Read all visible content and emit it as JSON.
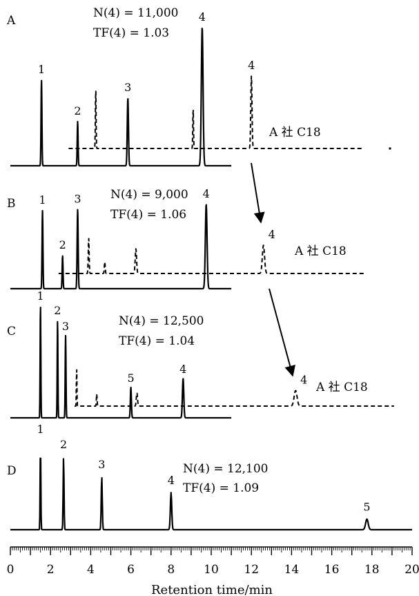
{
  "chart_data": {
    "type": "line",
    "xlabel": "Retention time/min",
    "xlim": [
      0,
      20
    ],
    "x_ticks": [
      "0",
      "2",
      "4",
      "6",
      "8",
      "10",
      "12",
      "14",
      "16",
      "18",
      "20"
    ],
    "arrow_label": "A 社 C18",
    "panels": [
      {
        "id": "A",
        "label": "A",
        "n_text": "N(4) = 11,000",
        "tf_text": "TF(4) = 1.03",
        "solid": {
          "x_range": [
            0,
            11
          ],
          "peaks": [
            {
              "label": "1",
              "rt": 1.55,
              "height": 0.62,
              "width": 0.05
            },
            {
              "label": "2",
              "rt": 3.35,
              "height": 0.32,
              "width": 0.05
            },
            {
              "label": "3",
              "rt": 5.85,
              "height": 0.49,
              "width": 0.07
            },
            {
              "label": "4",
              "rt": 9.55,
              "height": 1.0,
              "width": 0.1
            }
          ]
        },
        "dashed": {
          "x_range": [
            2.9,
            17.6
          ],
          "peaks": [
            {
              "rt": 4.25,
              "height": 0.5,
              "width": 0.04
            },
            {
              "rt": 9.1,
              "height": 0.34,
              "width": 0.04
            },
            {
              "label": "4",
              "rt": 12.0,
              "height": 0.6,
              "width": 0.07
            }
          ],
          "dot_x": 18.9
        }
      },
      {
        "id": "B",
        "label": "B",
        "n_text": "N(4) = 9,000",
        "tf_text": "TF(4) = 1.06",
        "solid": {
          "x_range": [
            0,
            11
          ],
          "peaks": [
            {
              "label": "1",
              "rt": 1.6,
              "height": 0.78,
              "width": 0.05
            },
            {
              "label": "2",
              "rt": 2.6,
              "height": 0.33,
              "width": 0.05
            },
            {
              "label": "3",
              "rt": 3.35,
              "height": 0.79,
              "width": 0.06
            },
            {
              "label": "4",
              "rt": 9.75,
              "height": 0.84,
              "width": 0.1
            }
          ]
        },
        "dashed": {
          "x_range": [
            2.4,
            17.6
          ],
          "peaks": [
            {
              "rt": 3.9,
              "height": 0.3,
              "width": 0.05
            },
            {
              "rt": 4.7,
              "height": 0.1,
              "width": 0.05
            },
            {
              "rt": 6.25,
              "height": 0.21,
              "width": 0.08
            },
            {
              "label": "4",
              "rt": 12.6,
              "height": 0.24,
              "width": 0.13
            }
          ]
        }
      },
      {
        "id": "C",
        "label": "C",
        "n_text": "N(4) = 12,500",
        "tf_text": "TF(4) = 1.04",
        "solid": {
          "x_range": [
            0,
            11
          ],
          "peaks": [
            {
              "label": "1",
              "rt": 1.5,
              "height": 1.0,
              "width": 0.04
            },
            {
              "label": "2",
              "rt": 2.35,
              "height": 0.87,
              "width": 0.04
            },
            {
              "label": "3",
              "rt": 2.75,
              "height": 0.73,
              "width": 0.045
            },
            {
              "label": "5",
              "rt": 6.0,
              "height": 0.27,
              "width": 0.06
            },
            {
              "label": "4",
              "rt": 8.6,
              "height": 0.35,
              "width": 0.08
            }
          ]
        },
        "dashed": {
          "x_range": [
            3.2,
            19.1
          ],
          "peaks": [
            {
              "rt": 3.3,
              "height": 0.39,
              "width": 0.03
            },
            {
              "rt": 4.3,
              "height": 0.12,
              "width": 0.04
            },
            {
              "rt": 6.3,
              "height": 0.13,
              "width": 0.07
            },
            {
              "label": "4",
              "rt": 14.2,
              "height": 0.15,
              "width": 0.17
            }
          ]
        }
      },
      {
        "id": "D",
        "label": "D",
        "n_text": "N(4) = 12,100",
        "tf_text": "TF(4) = 1.09",
        "solid": {
          "x_range": [
            0,
            20
          ],
          "peaks": [
            {
              "label": "1",
              "rt": 1.5,
              "height": 1.0,
              "width": 0.04
            },
            {
              "label": "2",
              "rt": 2.65,
              "height": 0.83,
              "width": 0.05
            },
            {
              "label": "3",
              "rt": 4.55,
              "height": 0.6,
              "width": 0.06
            },
            {
              "label": "4",
              "rt": 8.0,
              "height": 0.42,
              "width": 0.08
            },
            {
              "label": "5",
              "rt": 17.75,
              "height": 0.12,
              "width": 0.15
            }
          ]
        }
      }
    ]
  }
}
